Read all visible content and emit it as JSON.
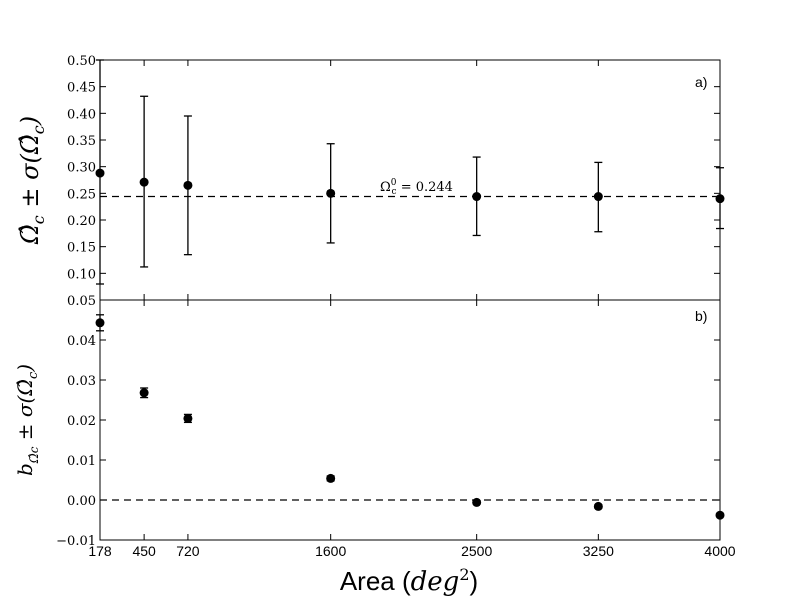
{
  "chart_data": [
    {
      "type": "scatter",
      "panel_label": "a)",
      "ylabel": "Ω̂c ± σ(Ω̂c)",
      "ylim": [
        0.05,
        0.5
      ],
      "yticks": [
        "0.05",
        "0.10",
        "0.15",
        "0.20",
        "0.25",
        "0.30",
        "0.35",
        "0.40",
        "0.45",
        "0.50"
      ],
      "x": [
        178,
        450,
        720,
        1600,
        2500,
        3250,
        4000
      ],
      "values": [
        0.288,
        0.271,
        0.265,
        0.25,
        0.244,
        0.244,
        0.24
      ],
      "err_low": [
        0.08,
        0.112,
        0.135,
        0.157,
        0.171,
        0.178,
        0.184
      ],
      "err_high": [
        0.5,
        0.432,
        0.395,
        0.343,
        0.318,
        0.308,
        0.298
      ],
      "reference_line": {
        "value": 0.244,
        "label": "Ω⁰c = 0.244"
      },
      "grid": false
    },
    {
      "type": "scatter",
      "panel_label": "b)",
      "ylabel": "bΩ̂c ± σ(Ω̂c)",
      "ylim": [
        -0.01,
        0.05
      ],
      "yticks": [
        "−0.01",
        "0.00",
        "0.01",
        "0.02",
        "0.03",
        "0.04"
      ],
      "x": [
        178,
        450,
        720,
        1600,
        2500,
        3250,
        4000
      ],
      "values": [
        0.0443,
        0.0268,
        0.0204,
        0.0054,
        -0.0006,
        -0.0016,
        -0.0038
      ],
      "errors": [
        0.002,
        0.0012,
        0.001,
        0.0006,
        0.0004,
        0.0004,
        0.0003
      ],
      "reference_line": {
        "value": 0.0
      },
      "grid": false
    }
  ],
  "xaxis": {
    "xlabel": "Area (deg²)",
    "xticks": [
      "178",
      "450",
      "720",
      "1600",
      "2500",
      "3250",
      "4000"
    ],
    "xlim": [
      178,
      4000
    ]
  },
  "colors": {
    "markers": "#000000",
    "lines": "#000000",
    "background": "#ffffff"
  }
}
